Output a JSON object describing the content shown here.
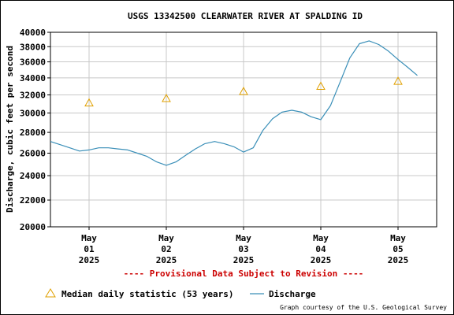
{
  "chart_data": {
    "type": "line",
    "title": "USGS 13342500 CLEARWATER RIVER AT SPALDING ID",
    "ylabel": "Discharge, cubic feet per second",
    "y_scale": "log",
    "ylim": [
      20000,
      40000
    ],
    "y_ticks": [
      20000,
      22000,
      24000,
      26000,
      28000,
      30000,
      32000,
      34000,
      36000,
      38000,
      40000
    ],
    "y_tick_labels": [
      "20000",
      "22000",
      "24000",
      "26000",
      "28000",
      "30000",
      "32000",
      "34000",
      "36000",
      "38000",
      "40000"
    ],
    "xlim": [
      "2025-04-30T12:00",
      "2025-05-05T12:00"
    ],
    "x_ticks": [
      {
        "date": "2025-05-01",
        "label": [
          "May",
          "01",
          "2025"
        ]
      },
      {
        "date": "2025-05-02",
        "label": [
          "May",
          "02",
          "2025"
        ]
      },
      {
        "date": "2025-05-03",
        "label": [
          "May",
          "03",
          "2025"
        ]
      },
      {
        "date": "2025-05-04",
        "label": [
          "May",
          "04",
          "2025"
        ]
      },
      {
        "date": "2025-05-05",
        "label": [
          "May",
          "05",
          "2025"
        ]
      }
    ],
    "grid": true,
    "series": [
      {
        "name": "Discharge",
        "color": "#3a8fb8",
        "points": [
          [
            "2025-04-30T12:00",
            27100
          ],
          [
            "2025-04-30T15:00",
            26800
          ],
          [
            "2025-04-30T18:00",
            26500
          ],
          [
            "2025-04-30T21:00",
            26200
          ],
          [
            "2025-05-01T00:00",
            26300
          ],
          [
            "2025-05-01T03:00",
            26500
          ],
          [
            "2025-05-01T06:00",
            26500
          ],
          [
            "2025-05-01T09:00",
            26400
          ],
          [
            "2025-05-01T12:00",
            26300
          ],
          [
            "2025-05-01T15:00",
            26000
          ],
          [
            "2025-05-01T18:00",
            25700
          ],
          [
            "2025-05-01T21:00",
            25200
          ],
          [
            "2025-05-02T00:00",
            24900
          ],
          [
            "2025-05-02T03:00",
            25200
          ],
          [
            "2025-05-02T06:00",
            25800
          ],
          [
            "2025-05-02T09:00",
            26400
          ],
          [
            "2025-05-02T12:00",
            26900
          ],
          [
            "2025-05-02T15:00",
            27100
          ],
          [
            "2025-05-02T18:00",
            26900
          ],
          [
            "2025-05-02T21:00",
            26600
          ],
          [
            "2025-05-03T00:00",
            26100
          ],
          [
            "2025-05-03T03:00",
            26500
          ],
          [
            "2025-05-03T06:00",
            28200
          ],
          [
            "2025-05-03T09:00",
            29400
          ],
          [
            "2025-05-03T12:00",
            30100
          ],
          [
            "2025-05-03T15:00",
            30300
          ],
          [
            "2025-05-03T18:00",
            30100
          ],
          [
            "2025-05-03T21:00",
            29600
          ],
          [
            "2025-05-04T00:00",
            29300
          ],
          [
            "2025-05-04T03:00",
            30800
          ],
          [
            "2025-05-04T06:00",
            33500
          ],
          [
            "2025-05-04T09:00",
            36500
          ],
          [
            "2025-05-04T12:00",
            38400
          ],
          [
            "2025-05-04T15:00",
            38800
          ],
          [
            "2025-05-04T18:00",
            38300
          ],
          [
            "2025-05-04T21:00",
            37400
          ],
          [
            "2025-05-05T00:00",
            36300
          ],
          [
            "2025-05-05T03:00",
            35300
          ],
          [
            "2025-05-05T06:00",
            34300
          ]
        ]
      },
      {
        "name": "Median daily statistic (53 years)",
        "color": "#e0a000",
        "marker": "triangle",
        "points": [
          [
            "2025-05-01",
            31100
          ],
          [
            "2025-05-02",
            31600
          ],
          [
            "2025-05-03",
            32400
          ],
          [
            "2025-05-04",
            33000
          ],
          [
            "2025-05-05",
            33600
          ]
        ]
      }
    ],
    "legend": {
      "placement": "bottom",
      "items": [
        {
          "label": "Median daily statistic (53 years)",
          "marker": "triangle",
          "color": "#e0a000"
        },
        {
          "label": "Discharge",
          "marker": "line",
          "color": "#3a8fb8"
        }
      ]
    },
    "annotations": {
      "provisional": "---- Provisional Data Subject to Revision ----",
      "provisional_color": "#cc0000",
      "credit": "Graph courtesy of the U.S. Geological Survey"
    }
  }
}
